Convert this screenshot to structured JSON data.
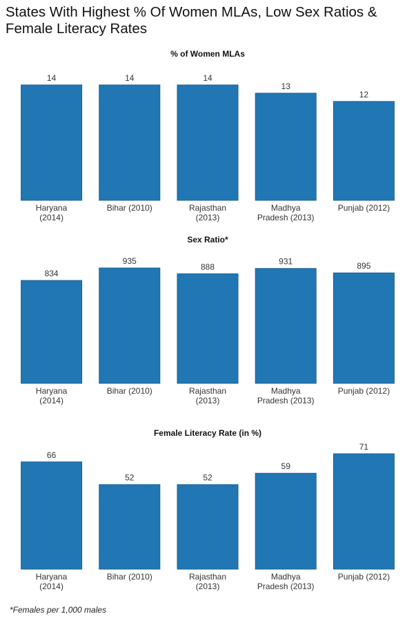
{
  "title": "States With Highest % Of Women MLAs, Low Sex Ratios & Female Literacy Rates",
  "footnote": "*Females per 1,000 males",
  "chart_data": [
    {
      "type": "bar",
      "title": "% of Women MLAs",
      "categories": [
        "Haryana\n(2014)",
        "Bihar (2010)",
        "Rajasthan\n(2013)",
        "Madhya\nPradesh (2013)",
        "Punjab (2012)"
      ],
      "values": [
        14,
        14,
        14,
        13,
        12
      ],
      "color": "#2077b4",
      "ylim": [
        0,
        14
      ]
    },
    {
      "type": "bar",
      "title": "Sex Ratio*",
      "categories": [
        "Haryana\n(2014)",
        "Bihar (2010)",
        "Rajasthan\n(2013)",
        "Madhya\nPradesh (2013)",
        "Punjab (2012)"
      ],
      "values": [
        834,
        935,
        888,
        931,
        895
      ],
      "color": "#2077b4",
      "ylim": [
        0,
        935
      ]
    },
    {
      "type": "bar",
      "title": "Female Literacy Rate (in %)",
      "categories": [
        "Haryana\n(2014)",
        "Bihar (2010)",
        "Rajasthan\n(2013)",
        "Madhya\nPradesh (2013)",
        "Punjab (2012)"
      ],
      "values": [
        66,
        52,
        52,
        59,
        71
      ],
      "color": "#2077b4",
      "ylim": [
        0,
        71
      ]
    }
  ]
}
